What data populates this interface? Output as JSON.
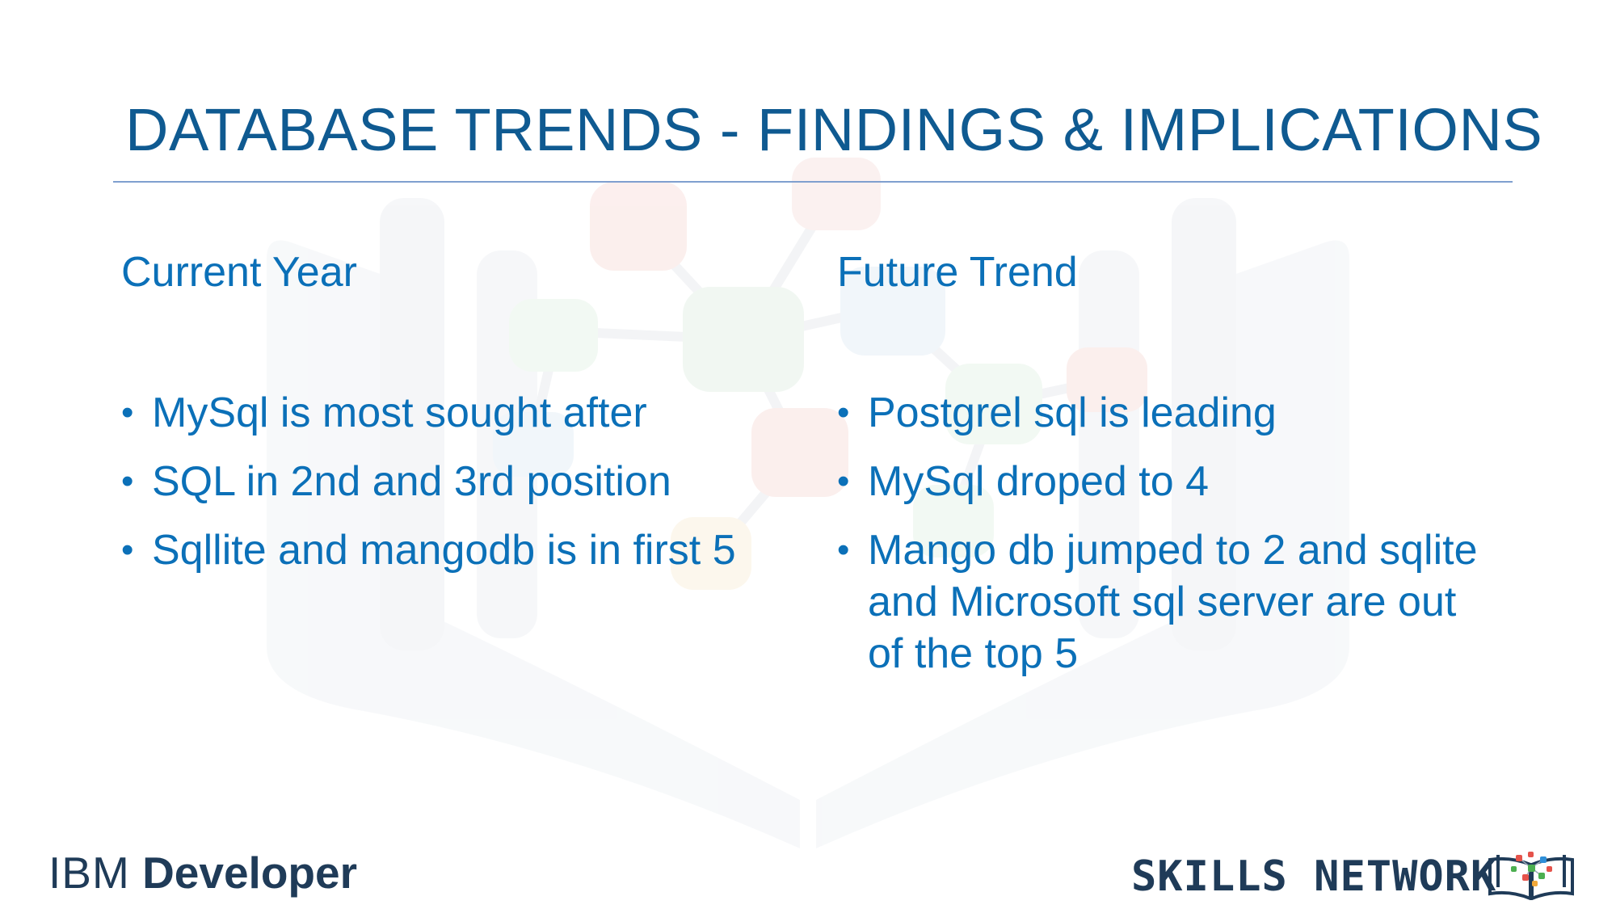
{
  "slide": {
    "title": "DATABASE TRENDS - FINDINGS & IMPLICATIONS"
  },
  "columns": [
    {
      "heading": "Current Year",
      "bullets": [
        "MySql is most sought after",
        "SQL in 2nd and 3rd position",
        "Sqllite and mangodb is in first 5"
      ]
    },
    {
      "heading": "Future Trend",
      "bullets": [
        "Postgrel sql is leading",
        "MySql droped to 4",
        "Mango db jumped to 2 and sqlite and Microsoft sql server are out of the top 5"
      ]
    }
  ],
  "footer": {
    "left_logo_part1": "IBM",
    "left_logo_part2": "Developer",
    "right_logo_text": "SKILLS NETWORK"
  },
  "colors": {
    "title": "#0f5a91",
    "body_text": "#0b70b8",
    "rule": "#7f9fcf",
    "logo_text": "#1f3b58"
  },
  "icons": {
    "bullet": "bullet-dot-icon",
    "watermark": "open-book-network-watermark",
    "skills_logo_mark": "open-book-network-icon"
  }
}
